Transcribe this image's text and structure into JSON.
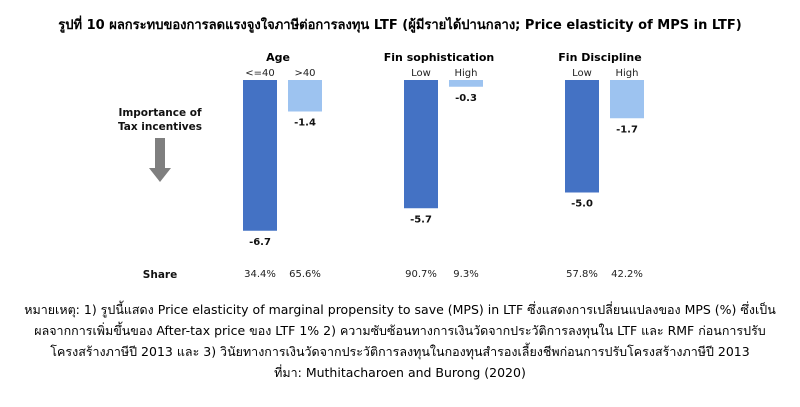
{
  "title": "รูปที่ 10 ผลกระทบของการลดแรงจูงใจภาษีต่อการลงทุน LTF (ผู้มีรายได้ปานกลาง; Price elasticity of MPS in LTF)",
  "side_label": [
    "Importance of",
    "Tax incentives"
  ],
  "share_label": "Share",
  "notes": [
    "หมายเหตุ: 1) รูปนี้แสดง Price elasticity of marginal propensity to save (MPS) in LTF ซึ่งแสดงการเปลี่ยนแปลงของ MPS (%) ซึ่งเป็น",
    "ผลจากการเพิ่มขึ้นของ After-tax price ของ LTF 1% 2) ความซับซ้อนทางการเงินวัดจากประวัติการลงทุนใน LTF และ RMF ก่อนการปรับ",
    "โครงสร้างภาษีปี 2013 และ 3) วินัยทางการเงินวัดจากประวัติการลงทุนในกองทุนสำรองเลี้ยงชีพก่อนการปรับโครงสร้างภาษีปี 2013",
    "ที่มา: Muthitacharoen and Burong (2020)"
  ],
  "colors": {
    "dark_bar": "#4472C4",
    "light_bar": "#9DC3F0",
    "arrow": "#7f7f7f"
  },
  "chart_data": {
    "type": "bar",
    "ylim": [
      -7,
      0
    ],
    "groups": [
      {
        "name": "Age",
        "bars": [
          {
            "category": "<=40",
            "value": -6.7,
            "label": "-6.7",
            "share": "34.4%",
            "shade": "dark"
          },
          {
            "category": ">40",
            "value": -1.4,
            "label": "-1.4",
            "share": "65.6%",
            "shade": "light"
          }
        ]
      },
      {
        "name": "Fin sophistication",
        "bars": [
          {
            "category": "Low",
            "value": -5.7,
            "label": "-5.7",
            "share": "90.7%",
            "shade": "dark"
          },
          {
            "category": "High",
            "value": -0.3,
            "label": "-0.3",
            "share": "9.3%",
            "shade": "light"
          }
        ]
      },
      {
        "name": "Fin Discipline",
        "bars": [
          {
            "category": "Low",
            "value": -5.0,
            "label": "-5.0",
            "share": "57.8%",
            "shade": "dark"
          },
          {
            "category": "High",
            "value": -1.7,
            "label": "-1.7",
            "share": "42.2%",
            "shade": "light"
          }
        ]
      }
    ]
  }
}
